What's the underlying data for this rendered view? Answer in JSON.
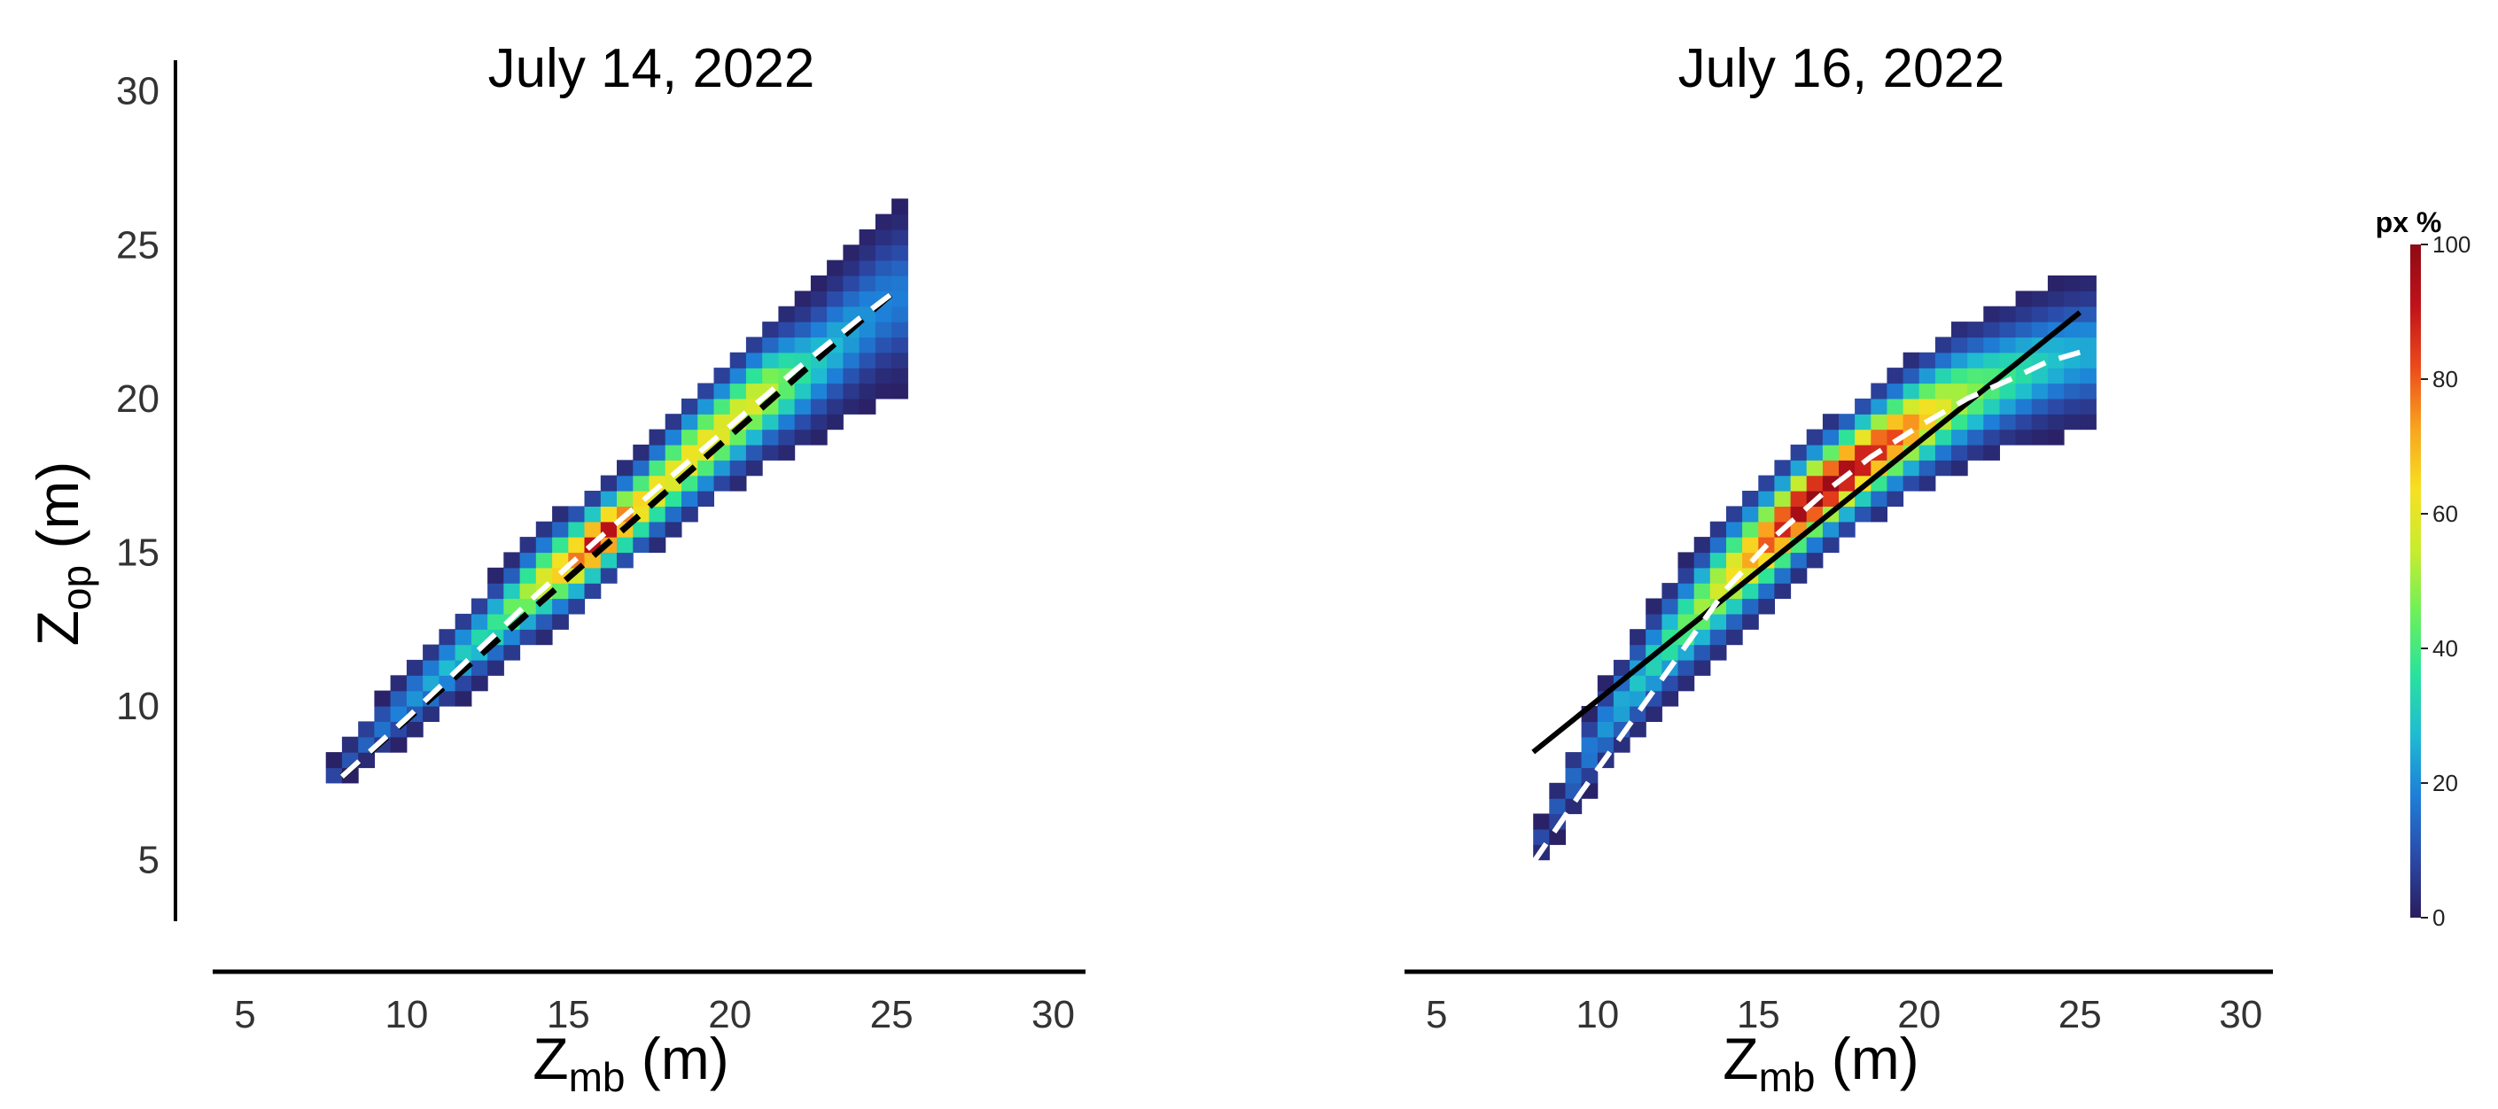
{
  "colorbar": {
    "title": "px %",
    "ticks": [
      0,
      20,
      40,
      60,
      80,
      100
    ],
    "stops": [
      "#2a1c5e",
      "#2b4aa8",
      "#1e7fd8",
      "#1fbcd2",
      "#2ae39a",
      "#6ef05a",
      "#c8ec2e",
      "#f7e022",
      "#f9a41e",
      "#ec4a1c",
      "#c0121a",
      "#8e0a14"
    ]
  },
  "chart_data": [
    {
      "type": "heatmap",
      "title": "July 14, 2022",
      "xlabel_main": "Z",
      "xlabel_sub": "mb",
      "xlabel_unit": " (m)",
      "ylabel_main": "Z",
      "ylabel_sub": "op",
      "ylabel_unit": " (m)",
      "xlim": [
        4,
        31
      ],
      "ylim": [
        3,
        31
      ],
      "xticks": [
        5,
        10,
        15,
        20,
        25,
        30
      ],
      "yticks": [
        5,
        10,
        15,
        20,
        25,
        30
      ],
      "density_ridge": {
        "x": [
          7.5,
          10,
          12.5,
          14,
          15.5,
          16,
          17,
          18,
          19,
          20,
          21,
          22.5,
          24,
          25
        ],
        "center": [
          7.6,
          10.1,
          12.4,
          13.9,
          15.0,
          15.5,
          16.3,
          17.3,
          18.3,
          19.2,
          20.1,
          21.0,
          22.4,
          23.3
        ],
        "width": [
          0.4,
          1.3,
          1.6,
          1.9,
          1.8,
          1.6,
          1.7,
          1.9,
          2.1,
          2.2,
          2.3,
          2.5,
          2.9,
          3.2
        ],
        "peak": [
          8,
          20,
          35,
          55,
          82,
          100,
          70,
          62,
          64,
          60,
          58,
          32,
          22,
          18
        ]
      },
      "fit_line": {
        "style": "dashed",
        "color": "#000000",
        "x": [
          8,
          25
        ],
        "y": [
          7.7,
          23.4
        ]
      },
      "loess_line": {
        "style": "dashed",
        "color": "#ffffff",
        "x": [
          8,
          10,
          12,
          14,
          16,
          18,
          20,
          22,
          24,
          25
        ],
        "y": [
          7.7,
          9.6,
          11.6,
          13.6,
          15.5,
          17.3,
          19.1,
          20.9,
          22.6,
          23.4
        ]
      }
    },
    {
      "type": "heatmap",
      "title": "July 16, 2022",
      "xlabel_main": "Z",
      "xlabel_sub": "mb",
      "xlabel_unit": " (m)",
      "xlim": [
        4,
        31
      ],
      "ylim": [
        3,
        31
      ],
      "xticks": [
        5,
        10,
        15,
        20,
        25,
        30
      ],
      "density_ridge": {
        "x": [
          8,
          10,
          12,
          14,
          15.5,
          16.5,
          18,
          19.5,
          21,
          22.5,
          24,
          25
        ],
        "center": [
          5.2,
          9.0,
          11.8,
          14.1,
          15.6,
          16.6,
          17.8,
          18.9,
          19.9,
          20.6,
          21.2,
          21.5
        ],
        "width": [
          0.6,
          1.5,
          2.0,
          2.3,
          2.2,
          2.1,
          2.1,
          2.2,
          2.4,
          2.4,
          2.5,
          2.6
        ],
        "peak": [
          8,
          20,
          35,
          60,
          85,
          100,
          95,
          80,
          55,
          40,
          30,
          25
        ]
      },
      "fit_line": {
        "style": "solid",
        "color": "#000000",
        "x": [
          8,
          25
        ],
        "y": [
          8.5,
          22.8
        ]
      },
      "loess_line": {
        "style": "dashed",
        "color": "#ffffff",
        "x": [
          8,
          9.5,
          11,
          12.5,
          14,
          15.5,
          17,
          18.5,
          20,
          21.5,
          23,
          24,
          25
        ],
        "y": [
          4.9,
          7.2,
          9.4,
          11.6,
          13.8,
          15.5,
          16.9,
          18.1,
          19.1,
          20.0,
          20.7,
          21.2,
          21.5
        ]
      }
    }
  ]
}
